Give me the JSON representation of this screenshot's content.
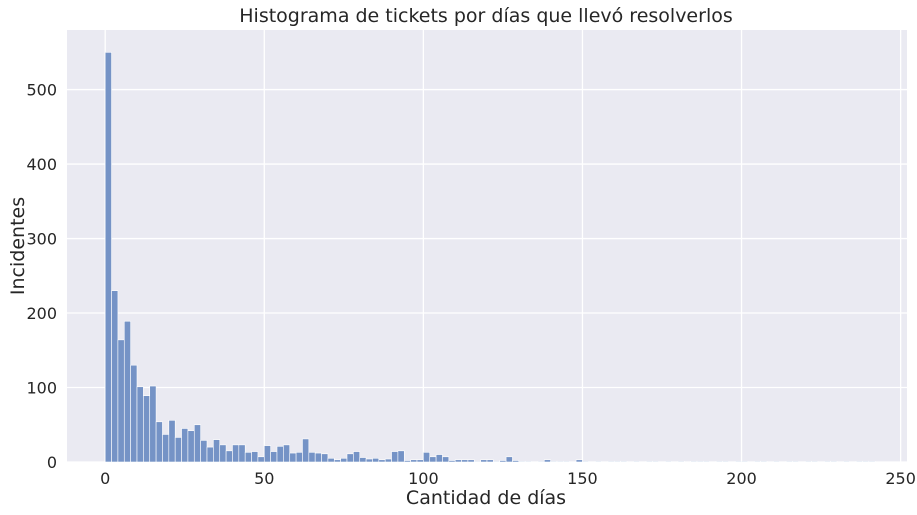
{
  "chart_data": {
    "type": "bar",
    "title": "Histograma de tickets por días que llevó resolverlos",
    "xlabel": "Cantidad de días",
    "ylabel": "Incidentes",
    "xlim": [
      -12,
      252
    ],
    "ylim": [
      0,
      580
    ],
    "xticks": [
      0,
      50,
      100,
      150,
      200,
      250
    ],
    "yticks": [
      0,
      100,
      200,
      300,
      400,
      500
    ],
    "grid": true,
    "legend": "none",
    "bin_width": 2,
    "bins_start": [
      0,
      2,
      4,
      6,
      8,
      10,
      12,
      14,
      16,
      18,
      20,
      22,
      24,
      26,
      28,
      30,
      32,
      34,
      36,
      38,
      40,
      42,
      44,
      46,
      48,
      50,
      52,
      54,
      56,
      58,
      60,
      62,
      64,
      66,
      68,
      70,
      72,
      74,
      76,
      78,
      80,
      82,
      84,
      86,
      88,
      90,
      92,
      94,
      96,
      98,
      100,
      102,
      104,
      106,
      108,
      110,
      112,
      114,
      116,
      118,
      120,
      122,
      124,
      126,
      128,
      130,
      132,
      134,
      136,
      138,
      140,
      142,
      144,
      146,
      148,
      150,
      152,
      154,
      156,
      158,
      160,
      162,
      164,
      166,
      168,
      170,
      172,
      174,
      176,
      178,
      180,
      182,
      184,
      186,
      188,
      190,
      192,
      194,
      196,
      198,
      200,
      202,
      204,
      206,
      208,
      210,
      212,
      214,
      216,
      218,
      220,
      222,
      224,
      226,
      228,
      230,
      232,
      234,
      236,
      238,
      240
    ],
    "values": [
      550,
      230,
      164,
      189,
      130,
      101,
      89,
      102,
      54,
      37,
      56,
      33,
      45,
      42,
      50,
      29,
      20,
      30,
      23,
      15,
      23,
      23,
      13,
      14,
      7,
      22,
      14,
      21,
      23,
      12,
      13,
      31,
      13,
      12,
      11,
      5,
      3,
      5,
      11,
      14,
      6,
      4,
      5,
      3,
      4,
      14,
      15,
      2,
      3,
      3,
      13,
      7,
      10,
      7,
      2,
      3,
      3,
      3,
      1,
      3,
      3,
      1,
      2,
      7,
      2,
      1,
      1,
      0,
      1,
      3,
      1,
      1,
      1,
      0,
      3,
      1,
      0,
      1,
      0,
      1,
      1,
      1,
      0,
      1,
      0,
      1,
      1,
      0,
      1,
      0,
      1,
      0,
      1,
      1,
      1,
      0,
      1,
      1,
      0,
      1,
      1,
      0,
      1,
      1,
      0,
      1,
      0,
      1,
      1,
      0,
      1,
      1,
      0,
      1,
      1,
      0,
      1,
      0,
      1,
      1,
      1
    ],
    "colors": {
      "bar_fill": "#7593c6",
      "bar_edge": "#ffffff",
      "plot_bg": "#eaeaf2",
      "grid": "#ffffff",
      "text": "#262626"
    }
  }
}
